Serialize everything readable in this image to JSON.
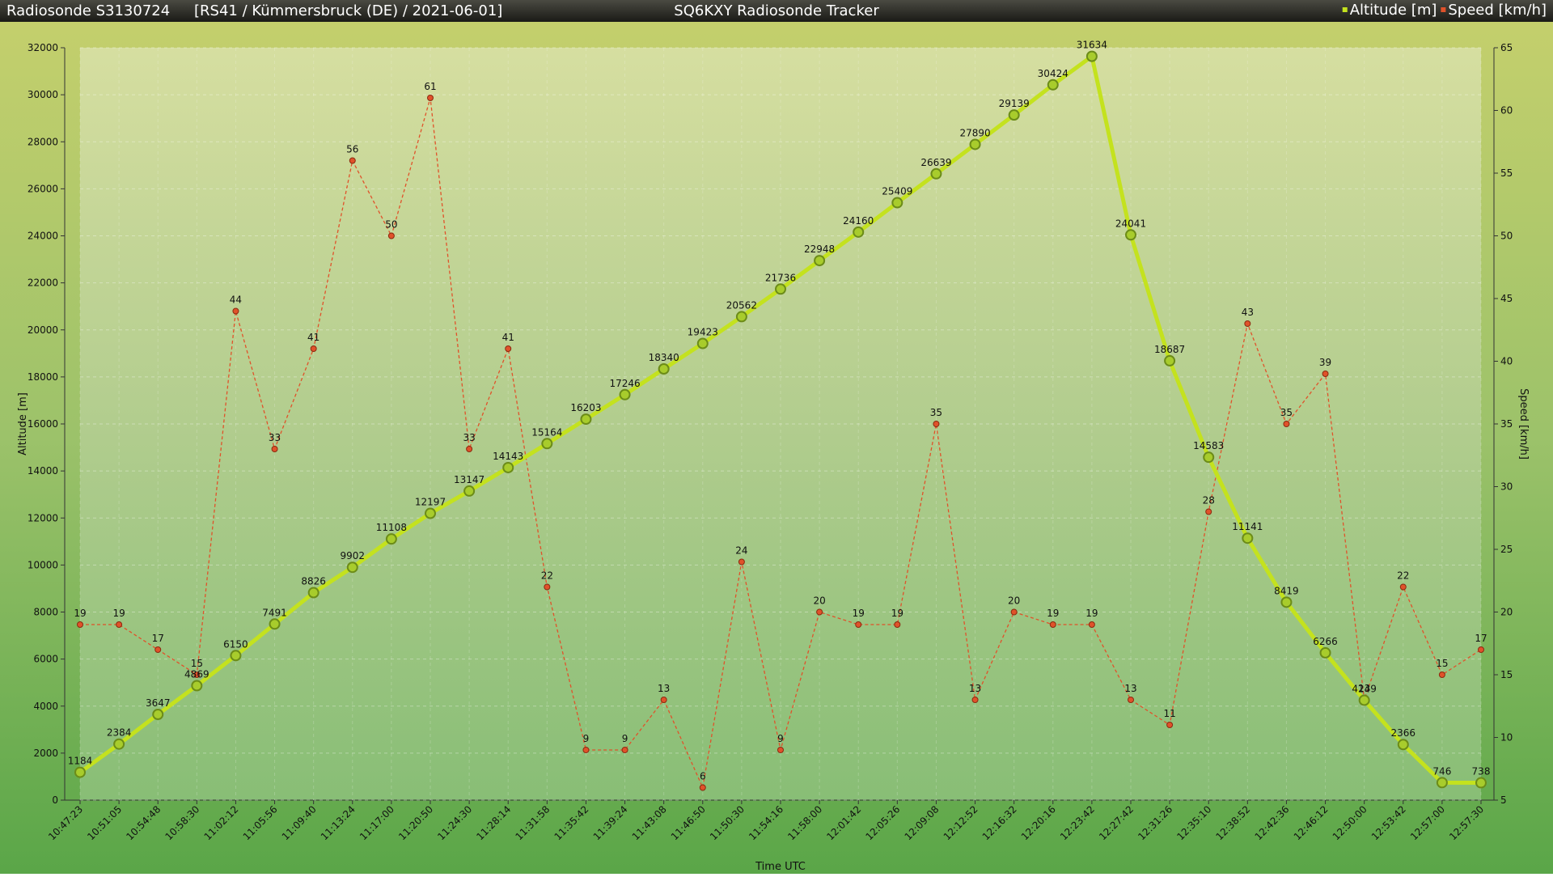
{
  "chart_data": {
    "type": "line",
    "title": "SQ6KXY Radiosonde Tracker",
    "sonde": "Radiosonde S3130724",
    "flight": "[RS41 / Kümmersbruck (DE) / 2021-06-01]",
    "xlabel": "Time UTC",
    "ylabel": "Altitude [m]",
    "y2label": "Speed [km/h]",
    "categories": [
      "10:47:23",
      "10:51:05",
      "10:54:48",
      "10:58:30",
      "11:02:12",
      "11:05:56",
      "11:09:40",
      "11:13:24",
      "11:17:00",
      "11:20:50",
      "11:24:30",
      "11:28:14",
      "11:31:58",
      "11:35:42",
      "11:39:24",
      "11:43:08",
      "11:46:50",
      "11:50:30",
      "11:54:16",
      "11:58:00",
      "12:01:42",
      "12:05:26",
      "12:09:08",
      "12:12:52",
      "12:16:32",
      "12:20:16",
      "12:23:42",
      "12:27:42",
      "12:31:26",
      "12:35:10",
      "12:38:52",
      "12:42:36",
      "12:46:12",
      "12:50:00",
      "12:53:42",
      "12:57:00",
      "12:57:30"
    ],
    "series": [
      {
        "name": "Altitude [m]",
        "color": "#c4e21e",
        "axis": "y",
        "values": [
          1184,
          2384,
          3647,
          4869,
          6150,
          7491,
          8826,
          9902,
          11108,
          12197,
          13147,
          14143,
          15164,
          16203,
          17246,
          18340,
          19423,
          20562,
          21736,
          22948,
          24160,
          25409,
          26639,
          27890,
          29139,
          30424,
          31634,
          24041,
          18687,
          14583,
          11141,
          8419,
          6266,
          4249,
          2366,
          746,
          738
        ]
      },
      {
        "name": "Speed [km/h]",
        "color": "#e0522a",
        "axis": "y2",
        "values": [
          19,
          19,
          17,
          15,
          44,
          33,
          41,
          56,
          50,
          61,
          33,
          41,
          22,
          9,
          9,
          13,
          6,
          24,
          9,
          20,
          19,
          19,
          35,
          13,
          20,
          19,
          19,
          13,
          11,
          28,
          43,
          35,
          39,
          13,
          22,
          15,
          17
        ]
      }
    ],
    "ylim": [
      0,
      32000
    ],
    "yticks": [
      0,
      2000,
      4000,
      6000,
      8000,
      10000,
      12000,
      14000,
      16000,
      18000,
      20000,
      22000,
      24000,
      26000,
      28000,
      30000,
      32000
    ],
    "y2lim": [
      5,
      65
    ],
    "y2ticks": [
      5,
      10,
      15,
      20,
      25,
      30,
      35,
      40,
      45,
      50,
      55,
      60,
      65
    ],
    "grid": true,
    "legend": "top-right"
  }
}
